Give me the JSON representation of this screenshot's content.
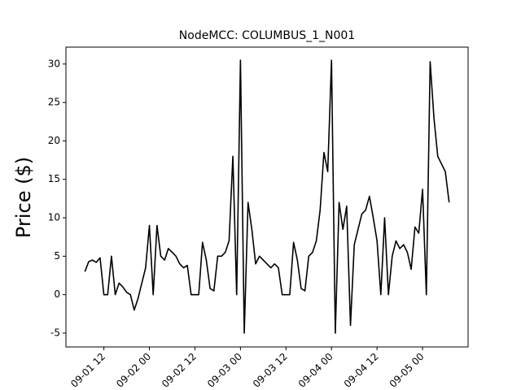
{
  "chart_data": {
    "type": "line",
    "title": "NodeMCC: COLUMBUS_1_N001",
    "y_label": "Price ($)",
    "color": "#000000",
    "x": [
      "09-01 07",
      "09-01 08",
      "09-01 09",
      "09-01 10",
      "09-01 11",
      "09-01 12",
      "09-01 13",
      "09-01 14",
      "09-01 15",
      "09-01 16",
      "09-01 17",
      "09-01 18",
      "09-01 19",
      "09-01 20",
      "09-01 21",
      "09-01 22",
      "09-01 23",
      "09-02 00",
      "09-02 01",
      "09-02 02",
      "09-02 03",
      "09-02 04",
      "09-02 05",
      "09-02 06",
      "09-02 07",
      "09-02 08",
      "09-02 09",
      "09-02 10",
      "09-02 11",
      "09-02 12",
      "09-02 13",
      "09-02 14",
      "09-02 15",
      "09-02 16",
      "09-02 17",
      "09-02 18",
      "09-02 19",
      "09-02 20",
      "09-02 21",
      "09-02 22",
      "09-02 23",
      "09-03 00",
      "09-03 01",
      "09-03 02",
      "09-03 03",
      "09-03 04",
      "09-03 05",
      "09-03 06",
      "09-03 07",
      "09-03 08",
      "09-03 09",
      "09-03 10",
      "09-03 11",
      "09-03 12",
      "09-03 13",
      "09-03 14",
      "09-03 15",
      "09-03 16",
      "09-03 17",
      "09-03 18",
      "09-03 19",
      "09-03 20",
      "09-03 21",
      "09-03 22",
      "09-03 23",
      "09-04 00",
      "09-04 01",
      "09-04 02",
      "09-04 03",
      "09-04 04",
      "09-04 05",
      "09-04 06",
      "09-04 07",
      "09-04 08",
      "09-04 09",
      "09-04 10",
      "09-04 11",
      "09-04 12",
      "09-04 13",
      "09-04 14",
      "09-04 15",
      "09-04 16",
      "09-04 17",
      "09-04 18",
      "09-04 19",
      "09-04 20",
      "09-04 21",
      "09-04 22",
      "09-04 23",
      "09-05 00",
      "09-05 01",
      "09-05 02",
      "09-05 03",
      "09-05 04",
      "09-05 05",
      "09-05 06",
      "09-05 07"
    ],
    "values": [
      3,
      4.3,
      4.5,
      4.2,
      4.8,
      0,
      0,
      5,
      0,
      1.5,
      1,
      0.3,
      0,
      -2,
      -0.5,
      1.5,
      3.5,
      9,
      0,
      9,
      5,
      4.5,
      6,
      5.5,
      5,
      4,
      3.5,
      3.8,
      0,
      0,
      0,
      6.8,
      4.5,
      0.8,
      0.5,
      5,
      5,
      5.5,
      7,
      18,
      0,
      30.5,
      -5,
      12,
      8.5,
      4,
      5,
      4.5,
      4,
      3.5,
      4,
      3.5,
      0,
      0,
      0,
      6.8,
      4.5,
      0.8,
      0.5,
      5,
      5.5,
      7,
      11,
      18.5,
      16,
      30.5,
      -5,
      12,
      8.5,
      11.5,
      -4,
      6.5,
      8.5,
      10.5,
      11,
      12.8,
      10,
      7,
      0,
      10,
      0,
      5,
      7,
      6,
      6.5,
      5.5,
      3.3,
      8.8,
      8,
      13.7,
      0,
      30.3,
      23,
      18,
      17,
      16,
      12
    ],
    "xlim": [
      "09-01 02",
      "09-05 12"
    ],
    "xticks": [
      "09-01 12",
      "09-02 00",
      "09-02 12",
      "09-03 00",
      "09-03 12",
      "09-04 00",
      "09-04 12",
      "09-05 00"
    ],
    "ylim": [
      -6.8,
      32.2
    ],
    "yticks": [
      -5,
      0,
      5,
      10,
      15,
      20,
      25,
      30
    ]
  }
}
